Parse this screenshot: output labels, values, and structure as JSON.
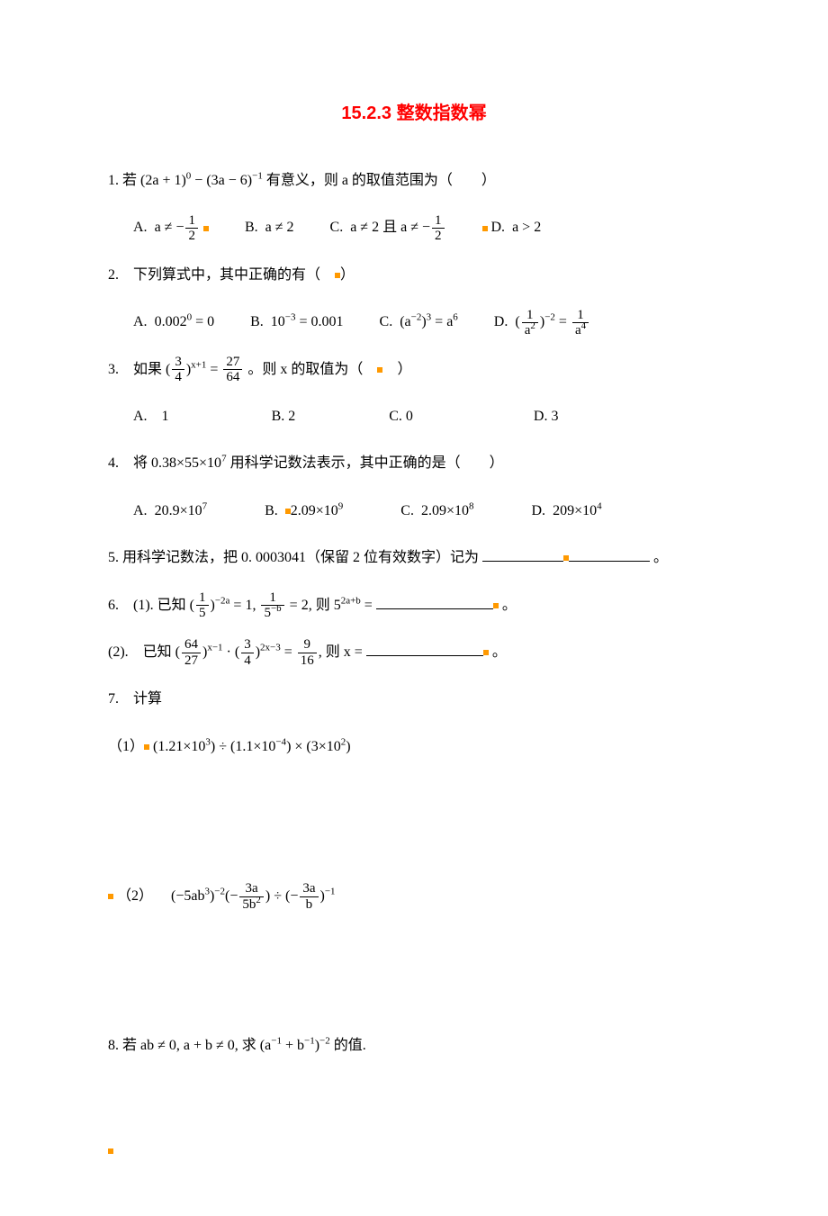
{
  "title_color": "#ff0000",
  "dot_color": "#ff9900",
  "blank_width_short": 90,
  "blank_width_mid": 70,
  "blank_width_long": 130,
  "title": "15.2.3 整数指数幂",
  "q1": {
    "stem_pre": "1. 若 ",
    "expr": "(2a + 1)<sup>0</sup> − (3a − 6)<sup>−1</sup>",
    "stem_post": " 有意义，则 a 的取值范围为（　　）",
    "A_label": "A.",
    "A_expr": "a ≠ −",
    "A_frac_num": "1",
    "A_frac_den": "2",
    "B_label": "B.",
    "B_expr": "a ≠ 2",
    "C_label": "C.",
    "C_pre": "a ≠ 2 且 a ≠ −",
    "C_frac_num": "1",
    "C_frac_den": "2",
    "D_label": "D.",
    "D_expr": "a > 2"
  },
  "q2": {
    "stem": "2. 下列算式中，其中正确的有（　　）",
    "A_label": "A.",
    "A_expr": "0.002<sup>0</sup> = 0",
    "B_label": "B.",
    "B_expr": "10<sup>−3</sup> = 0.001",
    "C_label": "C.",
    "C_expr": "(a<sup>−2</sup>)<sup>3</sup> = a<sup>6</sup>",
    "D_label": "D.",
    "D_left_num": "1",
    "D_left_den": "a<sup>2</sup>",
    "D_exp": "−2",
    "D_right_num": "1",
    "D_right_den": "a<sup>4</sup>"
  },
  "q3": {
    "stem_pre": "3. 如果 (",
    "frac_num": "3",
    "frac_den": "4",
    "exp": "x+1",
    "eq": " = ",
    "rhs_num": "27",
    "rhs_den": "64",
    "stem_post": "。则 x 的取值为（　 　）",
    "A": "A. 1",
    "B": "B. 2",
    "C": "C. 0",
    "D": "D. 3"
  },
  "q4": {
    "stem": "4. 将 0.38×55×10<sup>7</sup> 用科学记数法表示，其中正确的是（　　）",
    "A_label": "A.",
    "A_expr": "20.9×10<sup>7</sup>",
    "B_label": "B.",
    "B_expr": "2.09×10<sup>9</sup>",
    "C_label": "C.",
    "C_expr": "2.09×10<sup>8</sup>",
    "D_label": "D.",
    "D_expr": "209×10<sup>4</sup>"
  },
  "q5": {
    "stem_pre": "5. 用科学记数法，把 0. 0003041（保留 2 位有效数字）记为",
    "stem_post": "。"
  },
  "q6": {
    "p1_pre": "6. (1). 已知 (",
    "p1_frac_num": "1",
    "p1_frac_den": "5",
    "p1_exp1": "−2a",
    "p1_mid1": " = 1, ",
    "p1_f2_num": "1",
    "p1_f2_den": "5<sup>−b</sup>",
    "p1_mid2": " = 2, 则 5",
    "p1_exp2": "2a+b",
    "p1_mid3": " =",
    "p1_post": "。",
    "p2_pre": "(2). 已知 (",
    "p2_f1_num": "64",
    "p2_f1_den": "27",
    "p2_exp1": "x−1",
    "p2_mid1": " · (",
    "p2_f2_num": "3",
    "p2_f2_den": "4",
    "p2_exp2": "2x−3",
    "p2_mid2": " = ",
    "p2_f3_num": "9",
    "p2_f3_den": "16",
    "p2_mid3": ", 则 x =",
    "p2_post": "。"
  },
  "q7": {
    "head": "7. 计算",
    "p1_pre": "（1）",
    "p1_expr": "(1.21×10<sup>3</sup>) ÷ (1.1×10<sup>−4</sup>) × (3×10<sup>2</sup>)",
    "p2_pre": "（2） ",
    "p2_t1": "(−5ab<sup>3</sup>)<sup>−2</sup>(−",
    "p2_f1_num": "3a",
    "p2_f1_den": "5b<sup>2</sup>",
    "p2_mid": ") ÷ (−",
    "p2_f2_num": "3a",
    "p2_f2_den": "b",
    "p2_end": ")<sup>−1</sup>"
  },
  "q8": {
    "stem": "8. 若 ab ≠ 0, a + b ≠ 0, 求 (a<sup>−1</sup> + b<sup>−1</sup>)<sup>−2</sup> 的值."
  }
}
